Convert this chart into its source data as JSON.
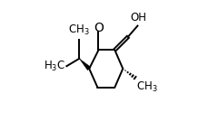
{
  "bg_color": "#ffffff",
  "line_color": "#000000",
  "lw": 1.4,
  "fs": 8.5
}
